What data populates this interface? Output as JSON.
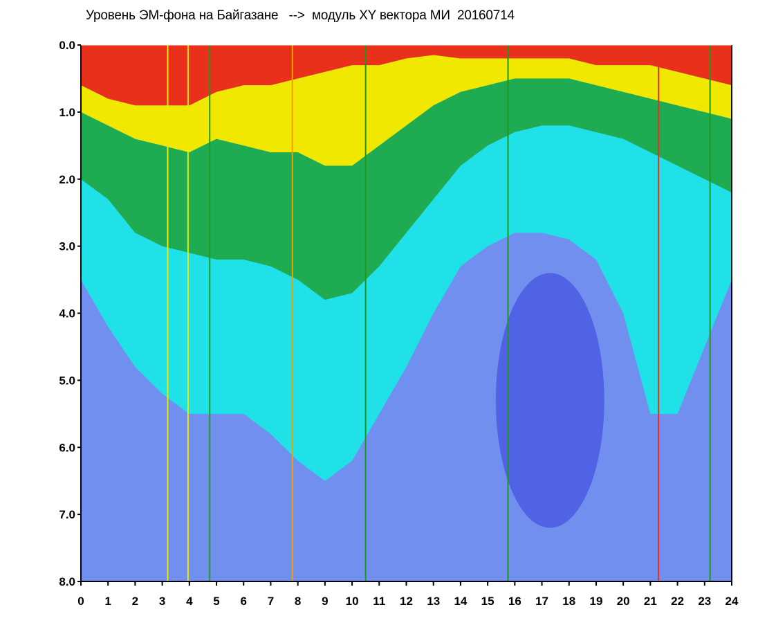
{
  "chart_data": {
    "type": "heatmap",
    "title": "Уровень ЭМ-фона на Байгазане   -->  модуль XY вектора МИ  20160714",
    "xlabel": "",
    "ylabel": "",
    "xlim": [
      0,
      24
    ],
    "ylim": [
      0,
      8
    ],
    "y_axis_inverted": true,
    "grid": false,
    "x_ticks": [
      "0",
      "1",
      "2",
      "3",
      "4",
      "5",
      "6",
      "7",
      "8",
      "9",
      "10",
      "11",
      "12",
      "13",
      "14",
      "15",
      "16",
      "17",
      "18",
      "19",
      "20",
      "21",
      "22",
      "23",
      "24"
    ],
    "y_ticks": [
      "0.0",
      "1.0",
      "2.0",
      "3.0",
      "4.0",
      "5.0",
      "6.0",
      "7.0",
      "8.0"
    ],
    "colors": {
      "red": "#e8301a",
      "orange": "#f0a000",
      "yellow": "#f0e800",
      "green": "#1f9a1f",
      "cyan": "#20e0e8",
      "violet": "#8080f0",
      "blue": "#1010d0"
    },
    "color_band_boundaries": {
      "hour": [
        0,
        1,
        2,
        3,
        4,
        5,
        6,
        7,
        8,
        9,
        10,
        11,
        12,
        13,
        14,
        15,
        16,
        17,
        18,
        19,
        20,
        21,
        22,
        23,
        24
      ],
      "red_to_yellow": [
        0.6,
        0.8,
        0.9,
        0.9,
        0.9,
        0.7,
        0.6,
        0.6,
        0.5,
        0.4,
        0.3,
        0.3,
        0.2,
        0.15,
        0.2,
        0.2,
        0.2,
        0.2,
        0.2,
        0.3,
        0.3,
        0.3,
        0.4,
        0.5,
        0.6
      ],
      "yellow_to_green": [
        1.0,
        1.2,
        1.4,
        1.5,
        1.6,
        1.4,
        1.5,
        1.6,
        1.6,
        1.8,
        1.8,
        1.5,
        1.2,
        0.9,
        0.7,
        0.6,
        0.5,
        0.5,
        0.5,
        0.6,
        0.7,
        0.8,
        0.9,
        1.0,
        1.1
      ],
      "green_to_cyan": [
        2.0,
        2.3,
        2.8,
        3.0,
        3.1,
        3.2,
        3.2,
        3.3,
        3.5,
        3.8,
        3.7,
        3.3,
        2.8,
        2.3,
        1.8,
        1.5,
        1.3,
        1.2,
        1.2,
        1.3,
        1.4,
        1.6,
        1.8,
        2.0,
        2.2
      ],
      "cyan_to_violet": [
        3.5,
        4.2,
        4.8,
        5.2,
        5.5,
        5.5,
        5.5,
        5.8,
        6.2,
        6.5,
        6.2,
        5.5,
        4.8,
        4.0,
        3.3,
        3.0,
        2.8,
        2.8,
        2.9,
        3.2,
        4.0,
        5.5,
        5.5,
        4.5,
        3.5
      ]
    },
    "vertical_lines": [
      {
        "hour": 3.2,
        "color": "yellow"
      },
      {
        "hour": 3.95,
        "color": "yellow"
      },
      {
        "hour": 4.75,
        "color": "green"
      },
      {
        "hour": 7.8,
        "color": "orange"
      },
      {
        "hour": 10.5,
        "color": "green"
      },
      {
        "hour": 15.75,
        "color": "green"
      },
      {
        "hour": 21.3,
        "color": "red"
      },
      {
        "hour": 23.2,
        "color": "green"
      }
    ]
  }
}
